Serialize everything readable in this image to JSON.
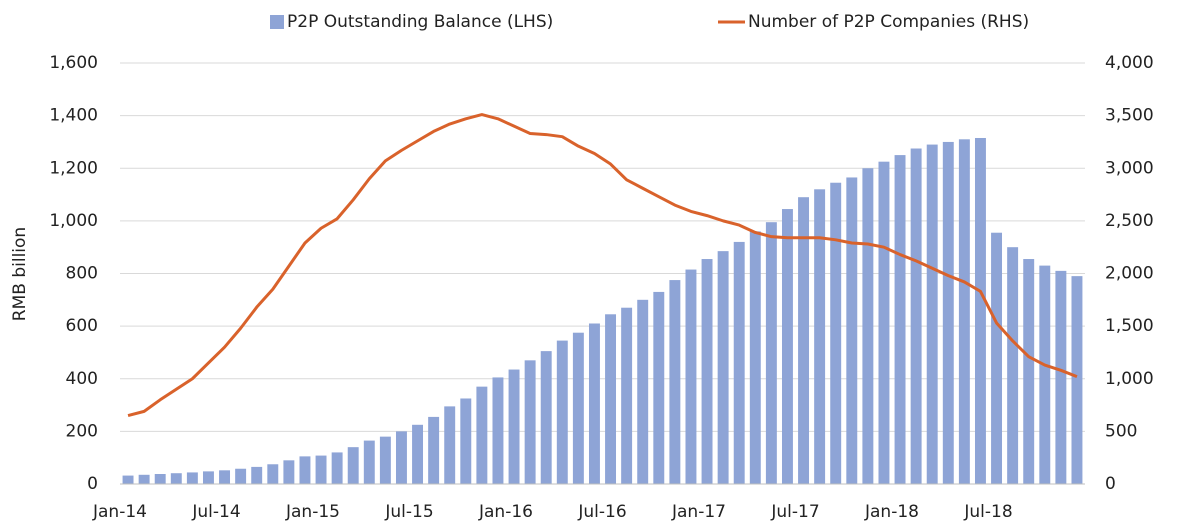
{
  "chart_data": {
    "type": "bar",
    "y_label": "RMB billion",
    "categories": [
      "Jan-14",
      null,
      null,
      null,
      null,
      null,
      "Jul-14",
      null,
      null,
      null,
      null,
      null,
      "Jan-15",
      null,
      null,
      null,
      null,
      null,
      "Jul-15",
      null,
      null,
      null,
      null,
      null,
      "Jan-16",
      null,
      null,
      null,
      null,
      null,
      "Jul-16",
      null,
      null,
      null,
      null,
      null,
      "Jan-17",
      null,
      null,
      null,
      null,
      null,
      "Jul-17",
      null,
      null,
      null,
      null,
      null,
      "Jan-18",
      null,
      null,
      null,
      null,
      null,
      "Jul-18",
      null,
      null,
      null,
      null,
      null
    ],
    "series": [
      {
        "name": "P2P Outstanding Balance (LHS)",
        "type": "bar",
        "color": "#8ea4d6",
        "values": [
          32,
          35,
          38,
          41,
          44,
          48,
          52,
          58,
          65,
          75,
          90,
          105,
          108,
          120,
          140,
          165,
          180,
          200,
          225,
          255,
          295,
          325,
          370,
          405,
          435,
          470,
          505,
          545,
          575,
          610,
          645,
          670,
          700,
          730,
          775,
          815,
          855,
          885,
          920,
          960,
          995,
          1045,
          1090,
          1120,
          1145,
          1165,
          1200,
          1225,
          1250,
          1275,
          1290,
          1300,
          1310,
          1315,
          955,
          900,
          855,
          830,
          810,
          790
        ]
      },
      {
        "name": "Number of P2P Companies (RHS)",
        "type": "line",
        "axis": "y2",
        "color": "#d9622b",
        "values": [
          650,
          690,
          800,
          900,
          1000,
          1150,
          1300,
          1480,
          1680,
          1850,
          2070,
          2290,
          2430,
          2520,
          2700,
          2900,
          3070,
          3170,
          3260,
          3350,
          3420,
          3470,
          3510,
          3470,
          3400,
          3330,
          3320,
          3300,
          3210,
          3140,
          3040,
          2890,
          2810,
          2730,
          2650,
          2590,
          2550,
          2500,
          2460,
          2390,
          2350,
          2340,
          2340,
          2340,
          2320,
          2290,
          2280,
          2250,
          2180,
          2120,
          2050,
          1980,
          1920,
          1830,
          1530,
          1360,
          1210,
          1130,
          1080,
          1020
        ]
      }
    ],
    "ylim": [
      0,
      1600
    ],
    "yticks": [
      0,
      200,
      400,
      600,
      800,
      {
        "value": 1000,
        "label": "1,000"
      },
      {
        "value": 1200,
        "label": "1,200"
      },
      {
        "value": 1400,
        "label": "1,400"
      },
      {
        "value": 1600,
        "label": "1,600"
      }
    ],
    "y2lim": [
      0,
      4000
    ],
    "y2ticks": [
      0,
      500,
      {
        "value": 1000,
        "label": "1,000"
      },
      {
        "value": 1500,
        "label": "1,500"
      },
      {
        "value": 2000,
        "label": "2,000"
      },
      {
        "value": 2500,
        "label": "2,500"
      },
      {
        "value": 3000,
        "label": "3,000"
      },
      {
        "value": 3500,
        "label": "3,500"
      },
      {
        "value": 4000,
        "label": "4,000"
      }
    ],
    "grid": true,
    "legend": "top"
  }
}
